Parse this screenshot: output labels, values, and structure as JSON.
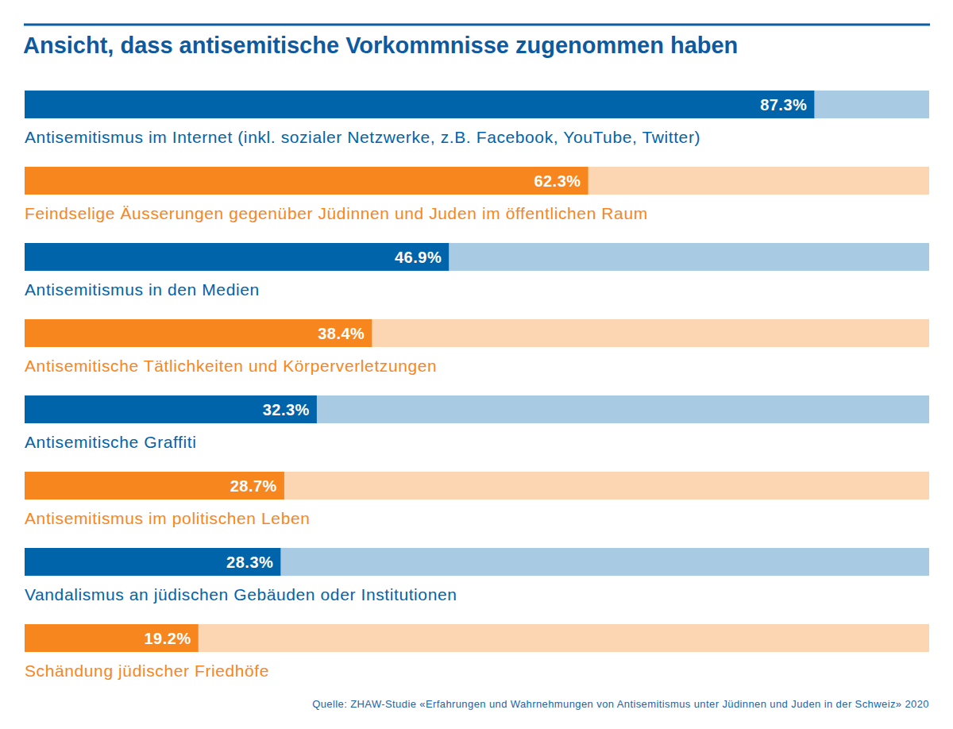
{
  "chart_data": {
    "type": "bar",
    "orientation": "horizontal",
    "title": "Ansicht, dass antisemitische Vorkommnisse zugenommen haben",
    "source": "Quelle: ZHAW-Studie «Erfahrungen und Wahrnehmungen von Antisemitismus unter Jüdinnen und Juden in der Schweiz» 2020",
    "categories": [
      "Antisemitismus im Internet (inkl. sozialer Netzwerke, z.B. Facebook, YouTube, Twitter)",
      "Feindselige Äusserungen gegenüber Jüdinnen und Juden im öffentlichen Raum",
      "Antisemitismus in den Medien",
      "Antisemitische Tätlichkeiten und Körperverletzungen",
      "Antisemitische Graffiti",
      "Antisemitismus im politischen Leben",
      "Vandalismus an jüdischen Gebäuden oder Institutionen",
      "Schändung jüdischer Friedhöfe"
    ],
    "values": [
      87.3,
      62.3,
      46.9,
      38.4,
      32.3,
      28.7,
      28.3,
      19.2
    ],
    "value_labels": [
      "87.3%",
      "62.3%",
      "46.9%",
      "38.4%",
      "32.3%",
      "28.7%",
      "28.3%",
      "19.2%"
    ],
    "colors": [
      "#0064aa",
      "#f7861e",
      "#0064aa",
      "#f7861e",
      "#0064aa",
      "#f7861e",
      "#0064aa",
      "#f7861e"
    ],
    "xlim": [
      0,
      100
    ],
    "data_labels": true,
    "tick_labels": false,
    "grid": false
  }
}
